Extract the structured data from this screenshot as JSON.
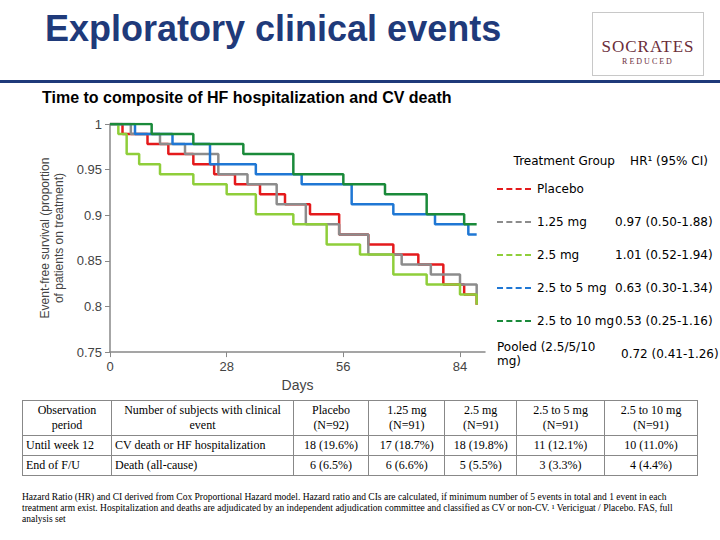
{
  "slide": {
    "title": "Exploratory clinical events",
    "logo": [
      "SOCRATES",
      "REDUCED"
    ],
    "footnote": "Hazard Ratio (HR) and CI derived from Cox Proportional Hazard model. Hazard ratio and CIs are calculated, if minimum number of 5 events in total and 1 event in each treatment arm exist. Hospitalization and deaths are adjudicated by an independent adjudication committee and classified as CV or non-CV. ¹ Vericiguat / Placebo. FAS, full analysis set"
  },
  "chart_data": {
    "type": "line",
    "title": "Time to composite of HF hospitalization and CV death",
    "x_label": "Days",
    "y_label": "Event-free survival (proportion\nof patients on treatment)",
    "xlim": [
      0,
      90
    ],
    "xticks": [
      0,
      28,
      56,
      84
    ],
    "ylim": [
      0.75,
      1
    ],
    "yticks": [
      0.75,
      0.8,
      0.85,
      0.9,
      0.95,
      1
    ],
    "grid": false,
    "line_style": "step",
    "legend_header": [
      "Treatment Group",
      "HR¹ (95% CI)"
    ],
    "series": [
      {
        "name": "Placebo",
        "color": "#e41a1c",
        "x": [
          0,
          3,
          9,
          14,
          20,
          25,
          30,
          36,
          42,
          48,
          55,
          62,
          68,
          74,
          80,
          85,
          88
        ],
        "values": [
          1,
          0.989,
          0.978,
          0.967,
          0.956,
          0.945,
          0.934,
          0.923,
          0.912,
          0.901,
          0.879,
          0.868,
          0.857,
          0.846,
          0.824,
          0.813,
          0.802
        ]
      },
      {
        "name": "1.25 mg",
        "color": "#8c8c8c",
        "hr": "0.97 (0.50-1.88)",
        "x": [
          0,
          5,
          12,
          18,
          26,
          33,
          40,
          47,
          55,
          62,
          70,
          77,
          84,
          88
        ],
        "values": [
          1,
          0.989,
          0.978,
          0.967,
          0.945,
          0.934,
          0.912,
          0.89,
          0.879,
          0.857,
          0.846,
          0.835,
          0.824,
          0.813
        ]
      },
      {
        "name": "2.5 mg",
        "color": "#8fce3a",
        "hr": "1.01 (0.52-1.94)",
        "x": [
          0,
          2,
          4,
          7,
          12,
          20,
          28,
          35,
          44,
          52,
          60,
          68,
          76,
          84,
          88
        ],
        "values": [
          1,
          0.989,
          0.967,
          0.956,
          0.945,
          0.934,
          0.923,
          0.901,
          0.89,
          0.868,
          0.857,
          0.835,
          0.824,
          0.813,
          0.802
        ]
      },
      {
        "name": "2.5 to 5 mg",
        "color": "#1f77d4",
        "hr": "0.63 (0.30-1.34)",
        "x": [
          0,
          6,
          15,
          24,
          35,
          46,
          58,
          68,
          78,
          86,
          88
        ],
        "values": [
          1,
          0.989,
          0.978,
          0.956,
          0.945,
          0.934,
          0.912,
          0.901,
          0.89,
          0.879,
          0.879
        ]
      },
      {
        "name": "2.5 to 10 mg",
        "color": "#1a8a3a",
        "hr": "0.53 (0.25-1.16)",
        "x": [
          0,
          10,
          20,
          32,
          44,
          56,
          66,
          76,
          85,
          88
        ],
        "values": [
          1,
          0.989,
          0.978,
          0.967,
          0.945,
          0.934,
          0.923,
          0.901,
          0.89,
          0.89
        ]
      }
    ],
    "pooled": {
      "name": "Pooled (2.5/5/10 mg)",
      "hr": "0.72 (0.41-1.26)"
    }
  },
  "table": {
    "header": [
      "Observation period",
      "Number of subjects with clinical event",
      "Placebo (N=92)",
      "1.25 mg (N=91)",
      "2.5 mg (N=91)",
      "2.5 to 5 mg (N=91)",
      "2.5 to 10 mg (N=91)"
    ],
    "rows": [
      [
        "Until week 12",
        "CV death or HF hospitalization",
        "18 (19.6%)",
        "17 (18.7%)",
        "18 (19.8%)",
        "11 (12.1%)",
        "10 (11.0%)"
      ],
      [
        "End of F/U",
        "Death (all-cause)",
        "6 (6.5%)",
        "6 (6.6%)",
        "5 (5.5%)",
        "3 (3.3%)",
        "4 (4.4%)"
      ]
    ]
  }
}
